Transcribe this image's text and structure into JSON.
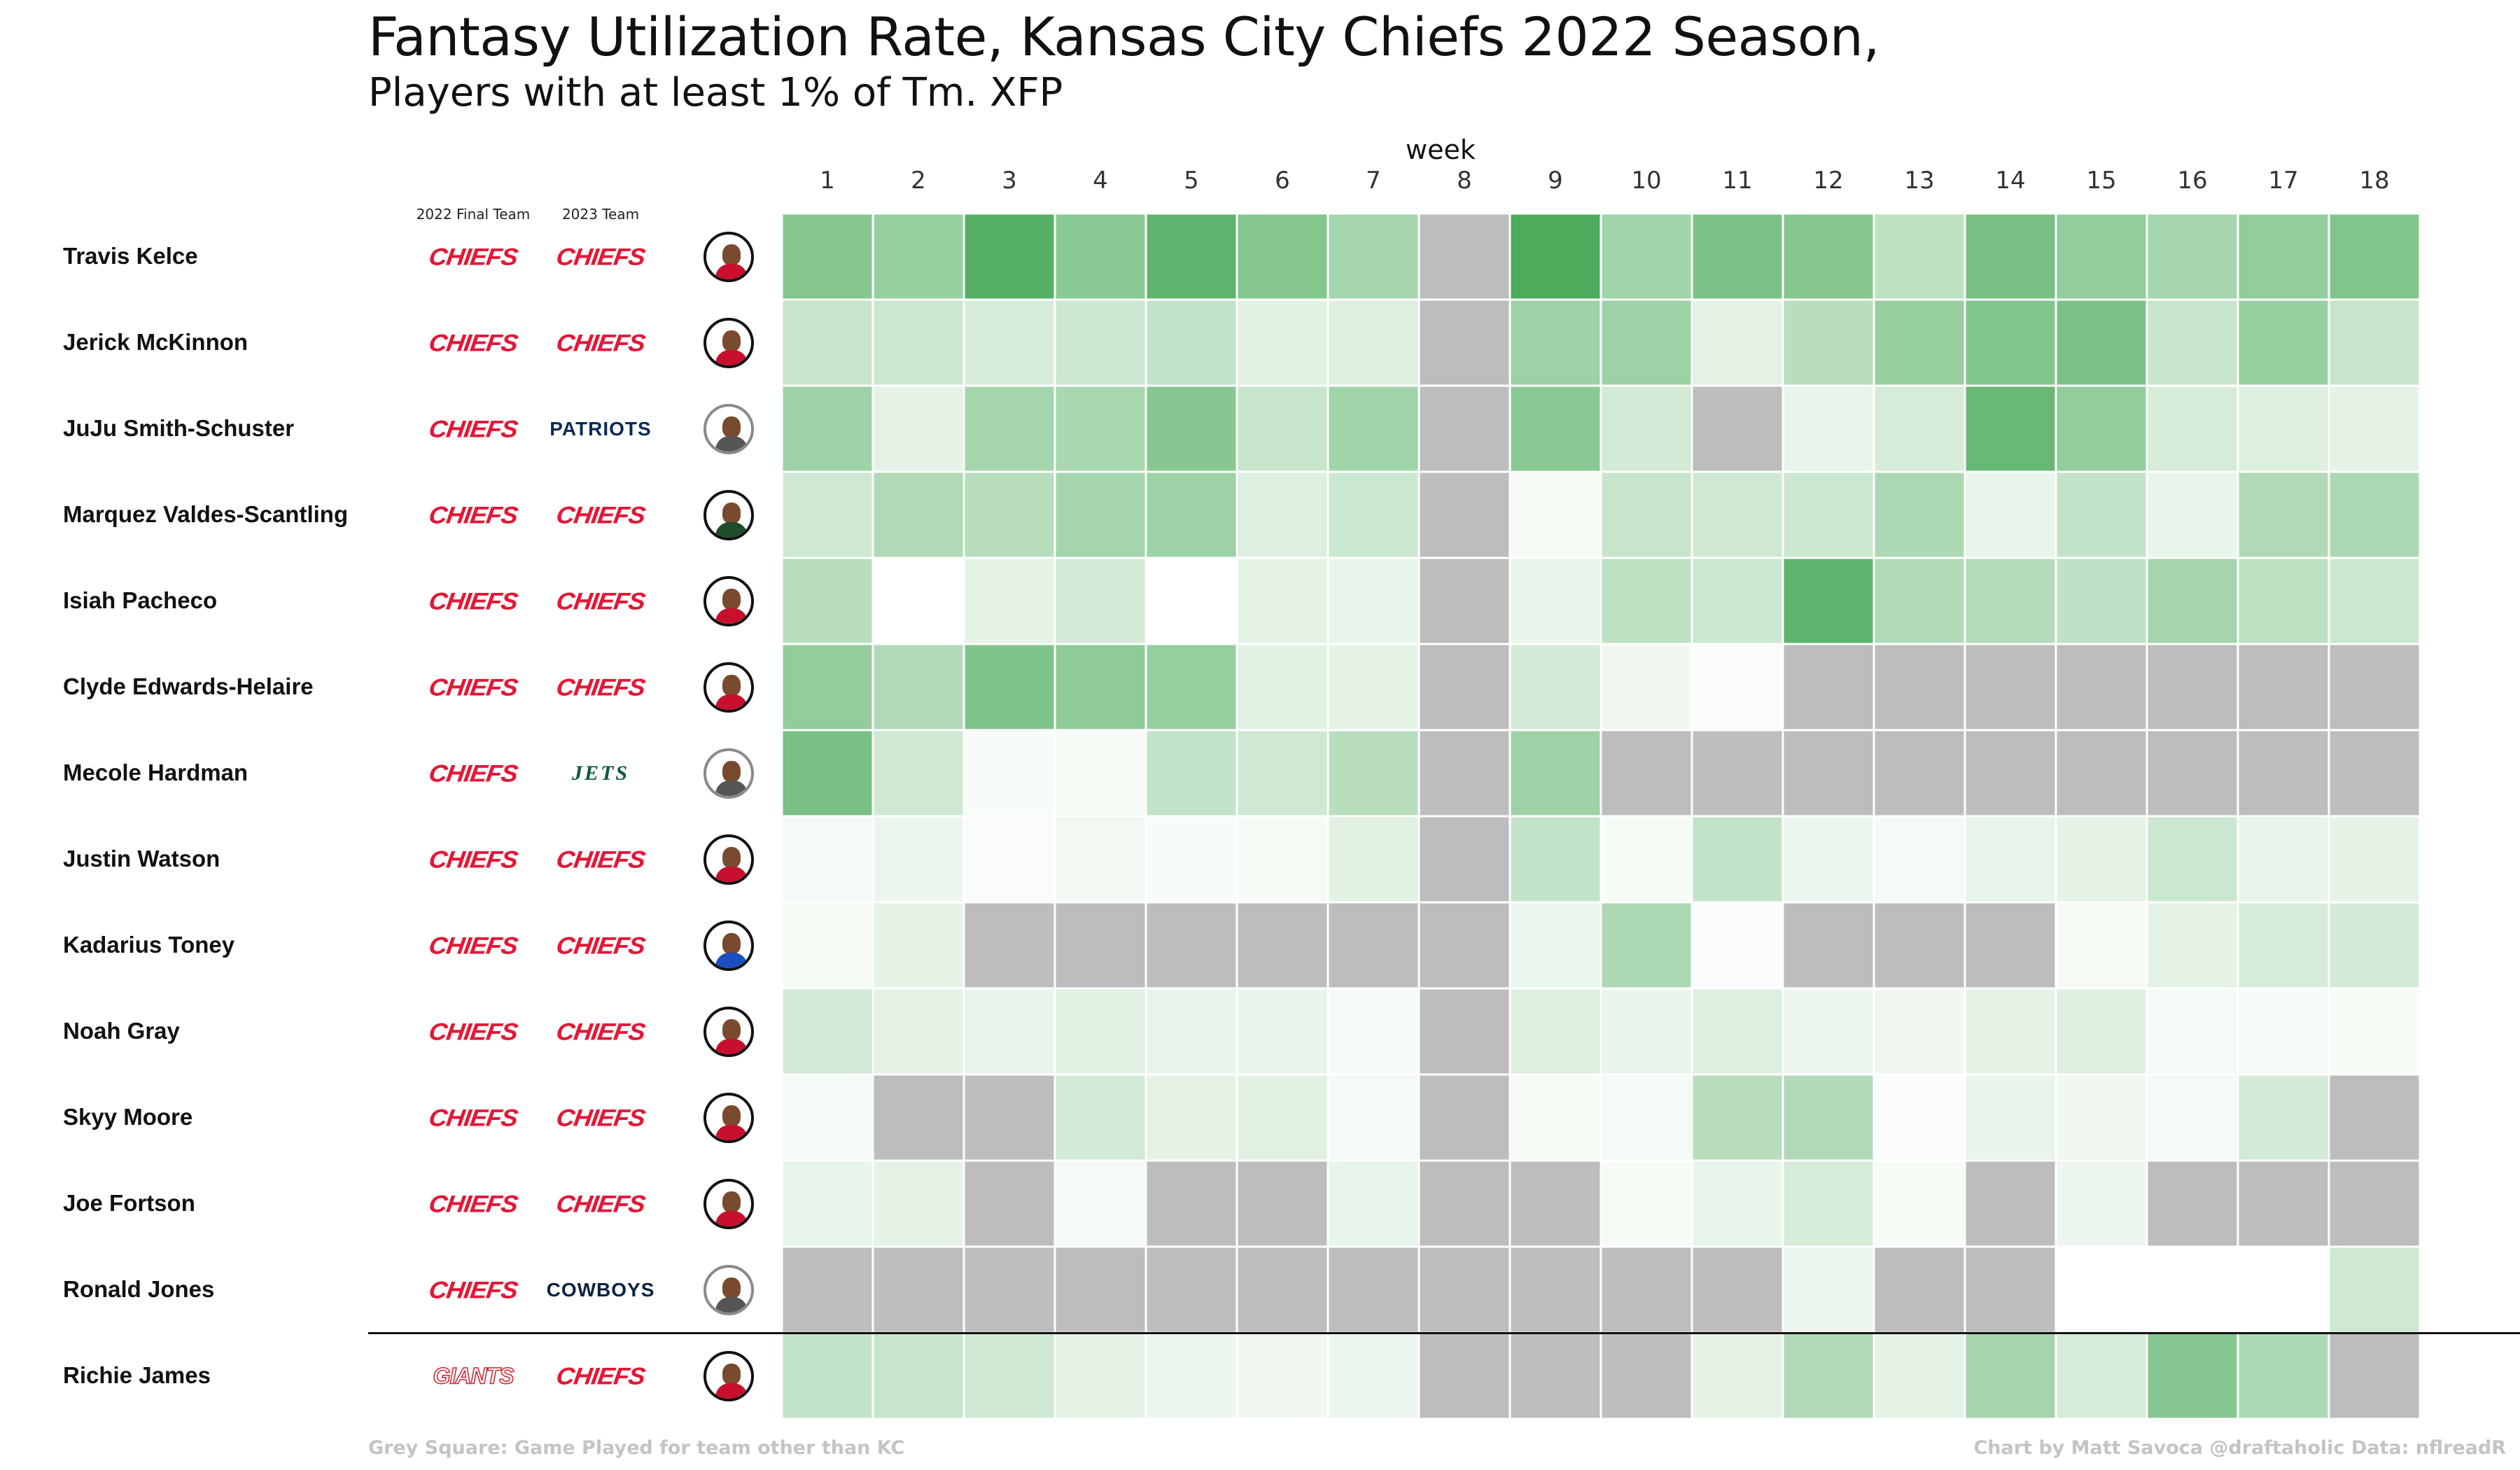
{
  "title": "Fantasy Utilization Rate, Kansas City Chiefs 2022 Season,",
  "subtitle": "Players with at least 1% of Tm. XFP",
  "column_headers": {
    "team_2022": "2022 Final Team",
    "team_2023": "2023 Team"
  },
  "footer": {
    "left": "Grey Square: Game Played for team other than KC",
    "right": "Chart by Matt Savoca    @draftaholic    Data: nflreadR"
  },
  "colors": {
    "grey": "#bdbdbd",
    "scale_low": "#ffffff",
    "scale_high": "#43a853",
    "chiefs_red": "#e31837"
  },
  "chart_data": {
    "type": "heatmap",
    "xlabel": "week",
    "x": [
      1,
      2,
      3,
      4,
      5,
      6,
      7,
      8,
      9,
      10,
      11,
      12,
      13,
      14,
      15,
      16,
      17,
      18
    ],
    "value_scale": "green intensity = share of team XFP (0 = white, 1 = darkest green); null = grey (other team / no game)",
    "rows": [
      {
        "player": "Travis Kelce",
        "team_2022": "CHIEFS",
        "team_2023": "CHIEFS",
        "headshot_color": "#c8102e",
        "values": [
          0.65,
          0.55,
          0.9,
          0.62,
          0.85,
          0.65,
          0.48,
          null,
          0.95,
          0.5,
          0.7,
          0.65,
          0.35,
          0.72,
          0.58,
          0.48,
          0.58,
          0.66
        ]
      },
      {
        "player": "Jerick McKinnon",
        "team_2022": "CHIEFS",
        "team_2023": "CHIEFS",
        "headshot_color": "#c8102e",
        "values": [
          0.3,
          0.28,
          0.22,
          0.28,
          0.32,
          0.16,
          0.18,
          null,
          0.52,
          0.52,
          0.15,
          0.38,
          0.55,
          0.66,
          0.7,
          0.3,
          0.55,
          0.3
        ]
      },
      {
        "player": "JuJu Smith-Schuster",
        "team_2022": "CHIEFS",
        "team_2023": "PATRIOTS",
        "headshot_color": "#555555",
        "values": [
          0.52,
          0.14,
          0.48,
          0.46,
          0.64,
          0.3,
          0.5,
          null,
          0.62,
          0.24,
          null,
          0.12,
          0.22,
          0.8,
          0.58,
          0.22,
          0.18,
          0.14
        ]
      },
      {
        "player": "Marquez Valdes-Scantling",
        "team_2022": "CHIEFS",
        "team_2023": "CHIEFS",
        "headshot_color": "#1d4d2b",
        "values": [
          0.26,
          0.42,
          0.38,
          0.48,
          0.52,
          0.18,
          0.28,
          null,
          0.05,
          0.3,
          0.26,
          0.28,
          0.44,
          0.12,
          0.32,
          0.12,
          0.42,
          0.44
        ]
      },
      {
        "player": "Isiah Pacheco",
        "team_2022": "CHIEFS",
        "team_2023": "CHIEFS",
        "headshot_color": "#c8102e",
        "values": [
          0.38,
          0.0,
          0.14,
          0.24,
          0.0,
          0.14,
          0.12,
          null,
          0.12,
          0.35,
          0.28,
          0.85,
          0.42,
          0.4,
          0.34,
          0.48,
          0.35,
          0.28
        ]
      },
      {
        "player": "Clyde Edwards-Helaire",
        "team_2022": "CHIEFS",
        "team_2023": "CHIEFS",
        "headshot_color": "#c8102e",
        "values": [
          0.58,
          0.42,
          0.68,
          0.6,
          0.56,
          0.16,
          0.14,
          null,
          0.24,
          0.08,
          0.03,
          null,
          null,
          null,
          null,
          null,
          null,
          null
        ]
      },
      {
        "player": "Mecole Hardman",
        "team_2022": "CHIEFS",
        "team_2023": "JETS",
        "headshot_color": "#555555",
        "values": [
          0.72,
          0.26,
          0.04,
          0.05,
          0.32,
          0.26,
          0.38,
          null,
          0.52,
          null,
          null,
          null,
          null,
          null,
          null,
          null,
          null,
          null
        ]
      },
      {
        "player": "Justin Watson",
        "team_2022": "CHIEFS",
        "team_2023": "CHIEFS",
        "headshot_color": "#c8102e",
        "values": [
          0.06,
          0.1,
          0.03,
          0.07,
          0.04,
          0.05,
          0.16,
          null,
          0.32,
          0.05,
          0.32,
          0.1,
          0.06,
          0.13,
          0.14,
          0.28,
          0.12,
          0.14
        ]
      },
      {
        "player": "Kadarius Toney",
        "team_2022": "CHIEFS",
        "team_2023": "CHIEFS",
        "headshot_color": "#1a4fbf",
        "values": [
          0.05,
          0.14,
          null,
          null,
          null,
          null,
          null,
          null,
          0.1,
          0.44,
          0.02,
          null,
          null,
          null,
          0.05,
          0.14,
          0.22,
          0.24
        ]
      },
      {
        "player": "Noah Gray",
        "team_2022": "CHIEFS",
        "team_2023": "CHIEFS",
        "headshot_color": "#c8102e",
        "values": [
          0.24,
          0.14,
          0.12,
          0.16,
          0.12,
          0.12,
          0.06,
          null,
          0.18,
          0.12,
          0.18,
          0.1,
          0.08,
          0.14,
          0.18,
          0.06,
          0.06,
          0.05
        ]
      },
      {
        "player": "Skyy Moore",
        "team_2022": "CHIEFS",
        "team_2023": "CHIEFS",
        "headshot_color": "#c8102e",
        "values": [
          0.06,
          null,
          null,
          0.24,
          0.14,
          0.16,
          0.06,
          null,
          0.05,
          0.06,
          0.38,
          0.42,
          0.02,
          0.12,
          0.08,
          0.06,
          0.24,
          null
        ]
      },
      {
        "player": "Joe Fortson",
        "team_2022": "CHIEFS",
        "team_2023": "CHIEFS",
        "headshot_color": "#c8102e",
        "values": [
          0.12,
          0.14,
          null,
          0.06,
          null,
          null,
          0.12,
          null,
          null,
          0.05,
          0.12,
          0.22,
          0.05,
          null,
          0.1,
          null,
          null,
          null
        ]
      },
      {
        "player": "Ronald Jones",
        "team_2022": "CHIEFS",
        "team_2023": "COWBOYS",
        "headshot_color": "#555555",
        "values": [
          null,
          null,
          null,
          null,
          null,
          null,
          null,
          null,
          null,
          null,
          null,
          0.1,
          null,
          null,
          0.0,
          0.0,
          0.0,
          0.26
        ]
      },
      {
        "player": "Richie James",
        "team_2022": "GIANTS",
        "team_2023": "CHIEFS",
        "headshot_color": "#c8102e",
        "values": [
          0.32,
          0.3,
          0.26,
          0.14,
          0.1,
          0.08,
          0.1,
          null,
          null,
          null,
          0.14,
          0.42,
          0.14,
          0.48,
          0.22,
          0.64,
          0.44,
          null
        ]
      }
    ]
  }
}
